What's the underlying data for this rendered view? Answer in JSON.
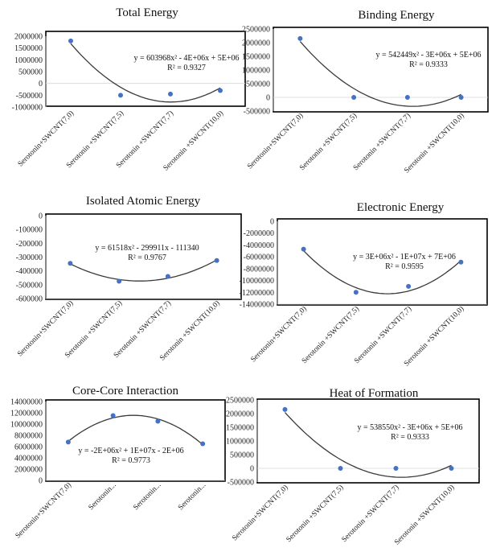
{
  "chart_data": [
    {
      "type": "scatter",
      "title": "Total Energy",
      "categories": [
        "Serotonin+SWCNT(7,0)",
        "Serotonin +SWCNT(7,5)",
        "Serotonin +SWCNT(7,7)",
        "Serotonin +SWCNT(10,0)"
      ],
      "values": [
        1800000,
        -500000,
        -450000,
        -300000
      ],
      "ylim": [
        -1000000,
        2000000
      ],
      "yticks": [
        "2000000",
        "1500000",
        "1000000",
        "500000",
        "0",
        "-500000",
        "-1000000"
      ],
      "trendline": "polynomial-2",
      "equation": "y = 603968x² - 4E+06x + 5E+06",
      "r_squared": "R² = 0.9327",
      "grid": false
    },
    {
      "type": "scatter",
      "title": "Binding Energy",
      "categories": [
        "Serotonin+SWCNT(7,0)",
        "Serotonin +SWCNT(7,5)",
        "Serotonin +SWCNT(7,7)",
        "Serotonin +SWCNT(10,0)"
      ],
      "values": [
        2150000,
        0,
        0,
        0
      ],
      "ylim": [
        -500000,
        2500000
      ],
      "yticks": [
        "2500000",
        "2000000",
        "1500000",
        "1000000",
        "500000",
        "0",
        "-500000"
      ],
      "trendline": "polynomial-2",
      "equation": "y = 542449x² - 3E+06x + 5E+06",
      "r_squared": "R² = 0.9333",
      "grid": false
    },
    {
      "type": "scatter",
      "title": "Isolated Atomic Energy",
      "categories": [
        "Serotonin+SWCNT(7,0)",
        "Serotonin +SWCNT(7,5)",
        "Serotonin +SWCNT(7,7)",
        "Serotonin +SWCNT(10,0)"
      ],
      "values": [
        -345000,
        -475000,
        -440000,
        -325000
      ],
      "ylim": [
        -600000,
        0
      ],
      "yticks": [
        "0",
        "-100000",
        "-200000",
        "-300000",
        "-400000",
        "-500000",
        "-600000"
      ],
      "trendline": "polynomial-2",
      "equation": "y = 61518x² - 299911x - 111340",
      "r_squared": "R² = 0.9767",
      "grid": false
    },
    {
      "type": "scatter",
      "title": "Electronic Energy",
      "categories": [
        "Serotonin+SWCNT(7,0)",
        "Serotonin +SWCNT(7,5)",
        "Serotonin +SWCNT(7,7)",
        "Serotonin +SWCNT(10,0)"
      ],
      "values": [
        -4700000,
        -12000000,
        -11000000,
        -6900000
      ],
      "ylim": [
        -14000000,
        0
      ],
      "yticks": [
        "0",
        "-2000000",
        "-4000000",
        "-6000000",
        "-8000000",
        "-10000000",
        "-12000000",
        "-14000000"
      ],
      "trendline": "polynomial-2",
      "equation": "y = 3E+06x² - 1E+07x + 7E+06",
      "r_squared": "R² = 0.9595",
      "grid": false
    },
    {
      "type": "scatter",
      "title": "Core-Core Interaction",
      "categories": [
        "Serotonin+SWCNT(7,0)",
        "Serotonin...",
        "Serotonin...",
        "Serotonin..."
      ],
      "values": [
        6800000,
        11500000,
        10500000,
        6500000
      ],
      "ylim": [
        0,
        14000000
      ],
      "yticks": [
        "14000000",
        "12000000",
        "10000000",
        "8000000",
        "6000000",
        "4000000",
        "2000000",
        "0"
      ],
      "trendline": "polynomial-2",
      "equation": "y = -2E+06x² + 1E+07x - 2E+06",
      "r_squared": "R² = 0.9773",
      "grid": false
    },
    {
      "type": "scatter",
      "title": "Heat of Formation",
      "categories": [
        "Serotonin+SWCNT(7,0)",
        "Serotonin +SWCNT(7,5)",
        "Serotonin +SWCNT(7,7)",
        "Serotonin +SWCNT(10,0)"
      ],
      "values": [
        2150000,
        0,
        0,
        0
      ],
      "ylim": [
        -500000,
        2500000
      ],
      "yticks": [
        "2500000",
        "2000000",
        "1500000",
        "1000000",
        "500000",
        "0",
        "-500000"
      ],
      "trendline": "polynomial-2",
      "equation": "y = 538550x² - 3E+06x + 5E+06",
      "r_squared": "R² = 0.9333",
      "grid": false
    }
  ]
}
